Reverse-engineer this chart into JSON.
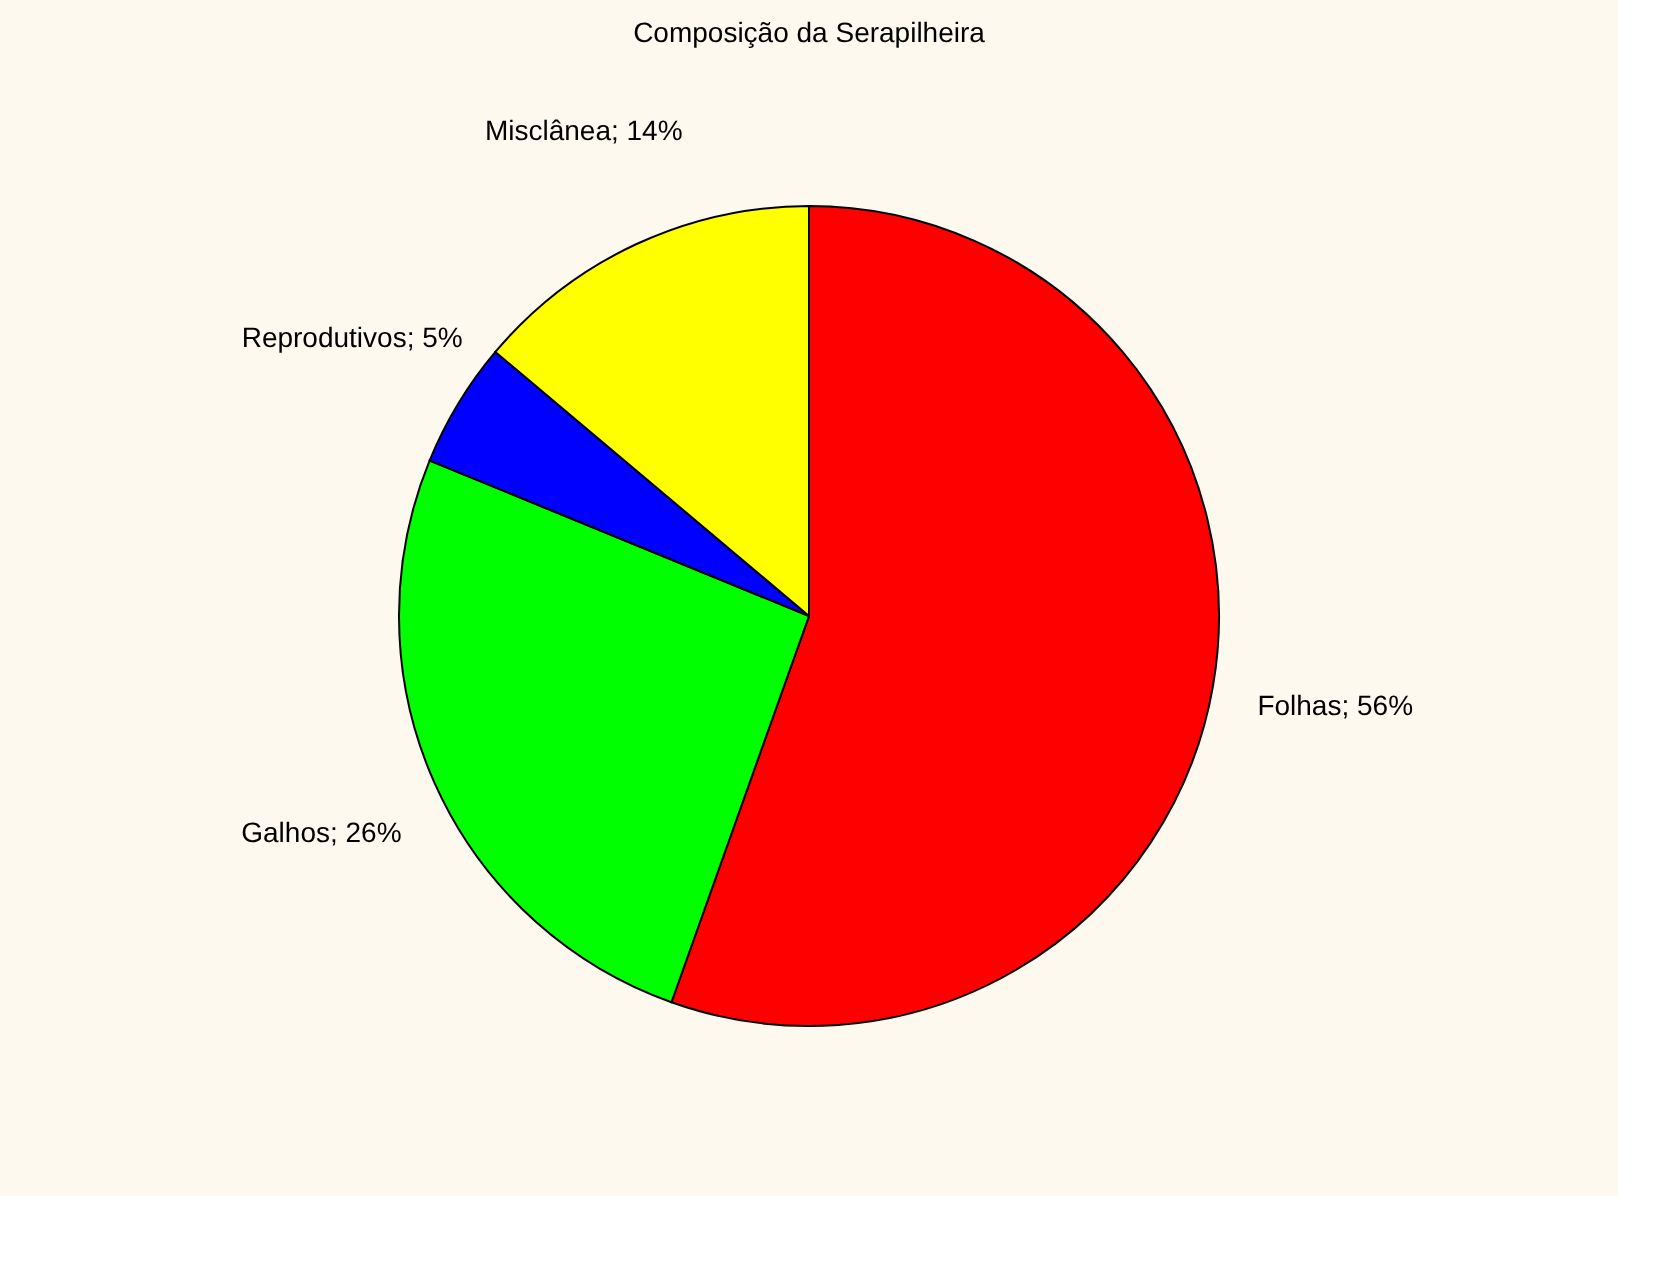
{
  "chart_data": {
    "type": "pie",
    "title": "Composição da Serapilheira",
    "categories": [
      "Folhas",
      "Galhos",
      "Reprodutivos",
      "Misclânea"
    ],
    "values": [
      56,
      26,
      5,
      14
    ],
    "value_labels": [
      "56%",
      "26%",
      "5%",
      "14%"
    ],
    "colors": [
      "#ff0000",
      "#00ff00",
      "#0000ff",
      "#ffff00"
    ],
    "legend": false
  }
}
